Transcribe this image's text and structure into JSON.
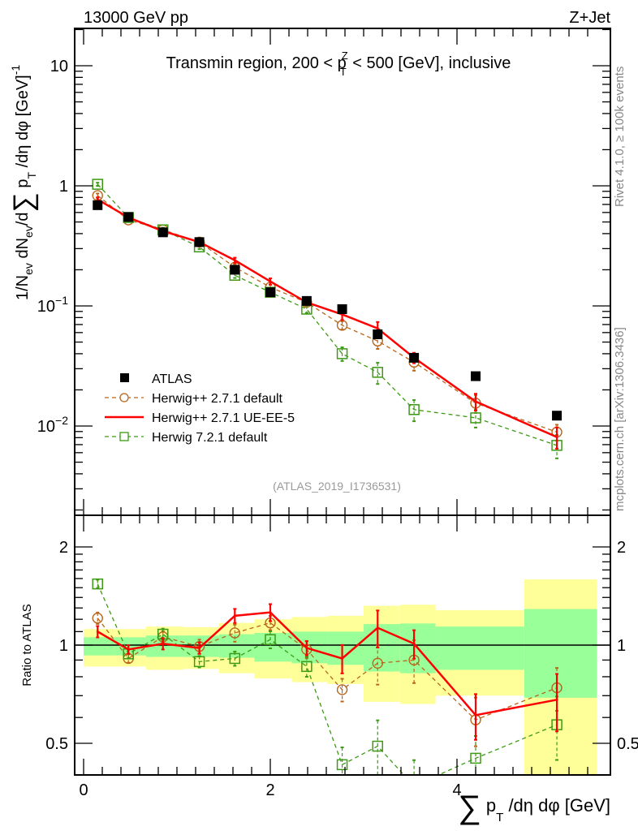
{
  "header": {
    "energy_label": "13000 GeV pp",
    "process_label": "Z+Jet"
  },
  "side_labels": {
    "rivet": "Rivet 4.1.0, ≥ 100k events",
    "source": "mcplots.cern.ch [arXiv:1306.3436]"
  },
  "analysis_id": "(ATLAS_2019_I1736531)",
  "colors": {
    "atlas": "#000000",
    "herwigpp_default": "#b8651a",
    "herwigpp_ueee5": "#ff0000",
    "herwig7": "#3c9a14",
    "band_stat": "#99ff99",
    "band_total": "#ffff99"
  },
  "chart_data": [
    {
      "type": "scatter",
      "panel": "main",
      "title": "Transmin region, 200 < pTZ < 500 [GeV], inclusive",
      "title_parts": [
        "Transmin region, 200 < p",
        "T",
        "Z",
        " < 500 [GeV], inclusive"
      ],
      "ylabel": "1/Nev dNev/d∑ pT /dη dφ [GeV]^-1",
      "ylabel_parts": [
        "1/N",
        "ev",
        " dN",
        "ev",
        "/d",
        "∑",
        " p",
        "T",
        " /dη dφ  [GeV]",
        "-1"
      ],
      "yscale": "log",
      "ylim": [
        0.0018,
        20
      ],
      "xlim": [
        -0.1,
        5.64
      ],
      "yticks": [
        {
          "v": 10,
          "label": "10"
        },
        {
          "v": 1,
          "label": "1"
        },
        {
          "v": 0.1,
          "label": "10",
          "exp": "−1"
        },
        {
          "v": 0.01,
          "label": "10",
          "exp": "−2"
        }
      ],
      "legend_position": "middle-left",
      "x": [
        0.15,
        0.48,
        0.85,
        1.24,
        1.62,
        2.0,
        2.39,
        2.77,
        3.15,
        3.54,
        4.2,
        5.07
      ],
      "series": [
        {
          "name": "ATLAS",
          "style": "marker-square",
          "values": [
            0.69,
            0.55,
            0.41,
            0.34,
            0.2,
            0.13,
            0.11,
            0.094,
            0.058,
            0.037,
            0.026,
            0.0122
          ]
        },
        {
          "name": "Herwig++ 2.7.1 default",
          "style": "dashed-circle",
          "values": [
            0.83,
            0.52,
            0.43,
            0.34,
            0.21,
            0.143,
            0.107,
            0.069,
            0.051,
            0.034,
            0.0155,
            0.0089
          ],
          "rel_err": [
            0.04,
            0.03,
            0.04,
            0.05,
            0.06,
            0.05,
            0.06,
            0.08,
            0.14,
            0.15,
            0.17,
            0.15
          ]
        },
        {
          "name": "Herwig++ 2.7.1 UE-EE-5",
          "style": "solid",
          "values": [
            0.77,
            0.545,
            0.42,
            0.34,
            0.24,
            0.16,
            0.107,
            0.085,
            0.065,
            0.037,
            0.016,
            0.0081
          ],
          "rel_err": [
            0.04,
            0.03,
            0.04,
            0.04,
            0.05,
            0.06,
            0.05,
            0.1,
            0.13,
            0.1,
            0.16,
            0.2
          ]
        },
        {
          "name": "Herwig 7.2.1 default",
          "style": "dashed-square",
          "values": [
            1.03,
            0.545,
            0.43,
            0.31,
            0.18,
            0.13,
            0.094,
            0.04,
            0.028,
            0.0137,
            0.0117,
            0.0069
          ],
          "rel_err": [
            0.03,
            0.03,
            0.04,
            0.04,
            0.05,
            0.06,
            0.07,
            0.13,
            0.2,
            0.2,
            0.17,
            0.22
          ]
        }
      ]
    },
    {
      "type": "line",
      "panel": "ratio",
      "ylabel": "Ratio to ATLAS",
      "xlabel": "∑ pT /dη dφ [GeV]",
      "xlabel_parts": [
        "∑",
        " p",
        "T",
        " /dη dφ [GeV]"
      ],
      "yscale": "log",
      "ylim": [
        0.4,
        2.5
      ],
      "xlim": [
        -0.1,
        5.64
      ],
      "yticks": [
        {
          "v": 2,
          "label": "2"
        },
        {
          "v": 1,
          "label": "1"
        },
        {
          "v": 0.5,
          "label": "0.5"
        }
      ],
      "xticks": [
        {
          "v": 0,
          "label": "0"
        },
        {
          "v": 2,
          "label": "2"
        },
        {
          "v": 4,
          "label": "4"
        }
      ],
      "bin_edges": [
        0,
        0.33,
        0.67,
        1.07,
        1.45,
        1.83,
        2.23,
        2.61,
        3.0,
        3.39,
        3.77,
        4.72,
        5.5
      ],
      "band_total": {
        "up": [
          1.12,
          1.12,
          1.14,
          1.135,
          1.17,
          1.2,
          1.22,
          1.23,
          1.32,
          1.33,
          1.28,
          1.59
        ],
        "down": [
          0.86,
          0.86,
          0.84,
          0.845,
          0.82,
          0.79,
          0.77,
          0.76,
          0.67,
          0.66,
          0.7,
          0.4
        ]
      },
      "band_stat": {
        "up": [
          1.057,
          1.057,
          1.07,
          1.07,
          1.08,
          1.09,
          1.1,
          1.1,
          1.16,
          1.165,
          1.14,
          1.29
        ],
        "down": [
          0.93,
          0.93,
          0.92,
          0.92,
          0.915,
          0.89,
          0.88,
          0.87,
          0.83,
          0.82,
          0.84,
          0.69
        ]
      },
      "x": [
        0.15,
        0.48,
        0.85,
        1.24,
        1.62,
        2.0,
        2.39,
        2.77,
        3.15,
        3.54,
        4.2,
        5.07
      ],
      "series": [
        {
          "name": "Herwig++ 2.7.1 default",
          "style": "dashed-circle",
          "values": [
            1.21,
            0.91,
            1.06,
            0.99,
            1.09,
            1.17,
            0.97,
            0.73,
            0.88,
            0.9,
            0.59,
            0.74
          ],
          "rel_err": [
            0.04,
            0.03,
            0.04,
            0.05,
            0.06,
            0.05,
            0.06,
            0.08,
            0.14,
            0.15,
            0.17,
            0.15
          ]
        },
        {
          "name": "Herwig++ 2.7.1 UE-EE-5",
          "style": "solid",
          "values": [
            1.1,
            0.97,
            1.01,
            0.98,
            1.23,
            1.26,
            0.98,
            0.91,
            1.13,
            1.01,
            0.61,
            0.68
          ],
          "rel_err": [
            0.04,
            0.03,
            0.04,
            0.04,
            0.05,
            0.06,
            0.05,
            0.1,
            0.13,
            0.1,
            0.16,
            0.2
          ]
        },
        {
          "name": "Herwig 7.2.1 default",
          "style": "dashed-square",
          "values": [
            1.54,
            0.94,
            1.08,
            0.89,
            0.91,
            1.04,
            0.86,
            0.43,
            0.49,
            0.37,
            0.45,
            0.57
          ],
          "rel_err": [
            0.03,
            0.03,
            0.04,
            0.04,
            0.05,
            0.06,
            0.07,
            0.13,
            0.2,
            0.2,
            0.17,
            0.22
          ]
        }
      ]
    }
  ]
}
